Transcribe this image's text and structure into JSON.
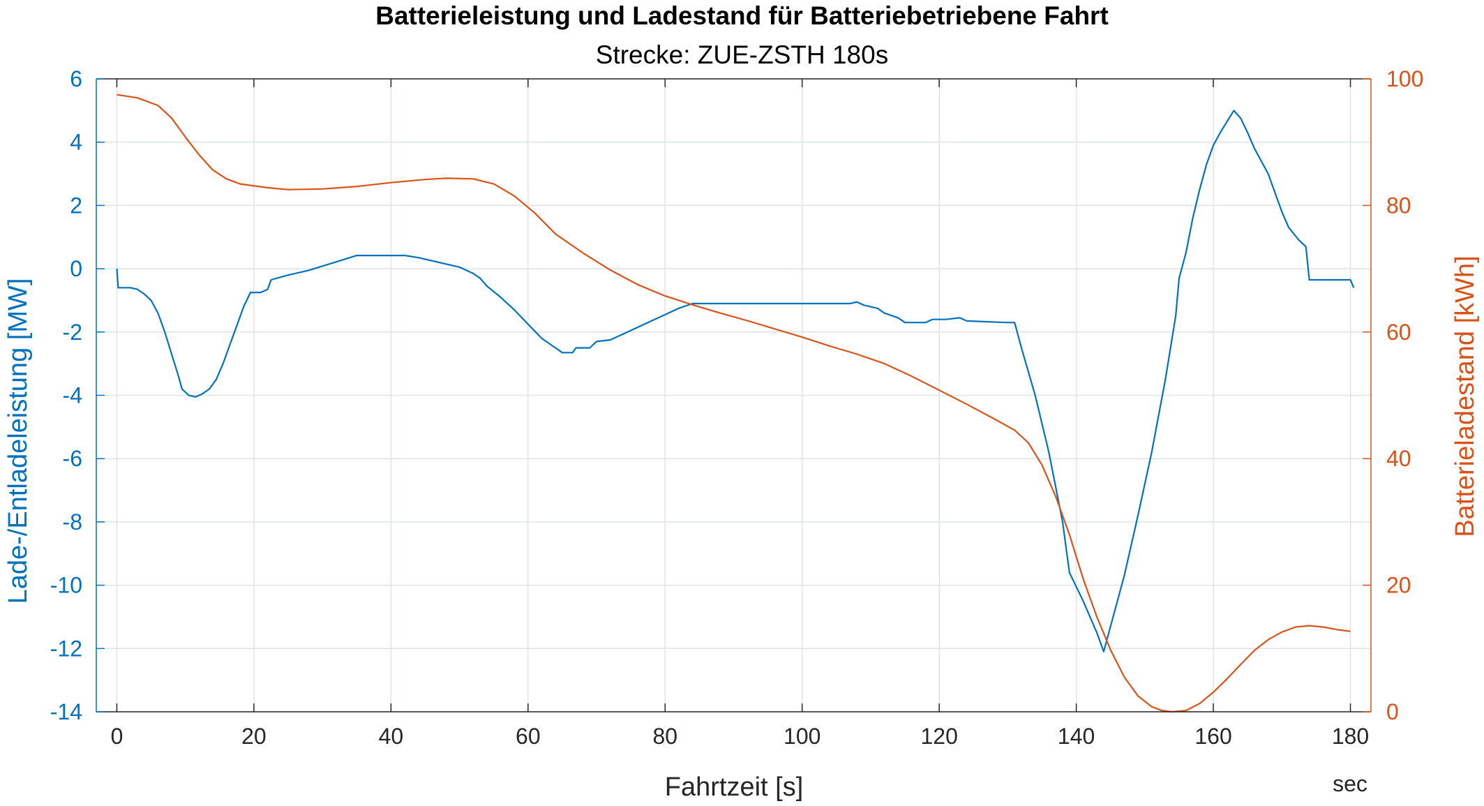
{
  "chart_data": {
    "type": "line",
    "title": "Batterieleistung und Ladestand für Batteriebetriebene Fahrt",
    "subtitle": "Strecke: ZUE-ZSTH 180s",
    "xlabel": "Fahrtzeit [s]",
    "x_unit_label": "sec",
    "ylabel_left": "Lade-/Entladeleistung [MW]",
    "ylabel_right": "Batterieladestand [kWh]",
    "xlim": [
      -3,
      183
    ],
    "ylim_left": [
      -14,
      6
    ],
    "ylim_right": [
      0,
      100
    ],
    "xticks": [
      0,
      20,
      40,
      60,
      80,
      100,
      120,
      140,
      160,
      180
    ],
    "yticks_left": [
      6,
      4,
      2,
      0,
      -2,
      -4,
      -6,
      -8,
      -10,
      -12,
      -14
    ],
    "yticks_right": [
      100,
      80,
      60,
      40,
      20,
      0
    ],
    "grid": true,
    "colors": {
      "left": "#0072BD",
      "right": "#D95319",
      "grid": "#dfe3e8",
      "axis": "#262626"
    },
    "series": [
      {
        "axis": "left",
        "points": [
          [
            0,
            0
          ],
          [
            0.2,
            -0.6
          ],
          [
            2,
            -0.6
          ],
          [
            3,
            -0.65
          ],
          [
            4,
            -0.8
          ],
          [
            5,
            -1.0
          ],
          [
            6,
            -1.4
          ],
          [
            7,
            -2.0
          ],
          [
            8,
            -2.7
          ],
          [
            9,
            -3.4
          ],
          [
            9.5,
            -3.8
          ],
          [
            10.5,
            -4.0
          ],
          [
            11.5,
            -4.05
          ],
          [
            12.5,
            -3.95
          ],
          [
            13.5,
            -3.8
          ],
          [
            14.5,
            -3.5
          ],
          [
            15.5,
            -3.0
          ],
          [
            16.5,
            -2.4
          ],
          [
            17.5,
            -1.8
          ],
          [
            18.5,
            -1.2
          ],
          [
            19.5,
            -0.75
          ],
          [
            21,
            -0.75
          ],
          [
            22,
            -0.65
          ],
          [
            22.5,
            -0.35
          ],
          [
            25,
            -0.2
          ],
          [
            28,
            -0.05
          ],
          [
            31,
            0.15
          ],
          [
            34,
            0.35
          ],
          [
            35,
            0.42
          ],
          [
            42,
            0.42
          ],
          [
            44,
            0.35
          ],
          [
            47,
            0.2
          ],
          [
            50,
            0.05
          ],
          [
            52,
            -0.15
          ],
          [
            53,
            -0.3
          ],
          [
            54,
            -0.55
          ],
          [
            56,
            -0.9
          ],
          [
            58,
            -1.3
          ],
          [
            60,
            -1.75
          ],
          [
            62,
            -2.2
          ],
          [
            64,
            -2.5
          ],
          [
            65,
            -2.65
          ],
          [
            66.5,
            -2.65
          ],
          [
            67,
            -2.5
          ],
          [
            69,
            -2.5
          ],
          [
            70,
            -2.3
          ],
          [
            72,
            -2.25
          ],
          [
            74,
            -2.05
          ],
          [
            76,
            -1.85
          ],
          [
            78,
            -1.65
          ],
          [
            80,
            -1.45
          ],
          [
            82,
            -1.25
          ],
          [
            84,
            -1.1
          ],
          [
            107,
            -1.1
          ],
          [
            108,
            -1.05
          ],
          [
            109,
            -1.15
          ],
          [
            111,
            -1.25
          ],
          [
            112,
            -1.4
          ],
          [
            114,
            -1.55
          ],
          [
            115,
            -1.7
          ],
          [
            118,
            -1.7
          ],
          [
            119,
            -1.6
          ],
          [
            121,
            -1.6
          ],
          [
            123,
            -1.55
          ],
          [
            124,
            -1.65
          ],
          [
            130,
            -1.7
          ],
          [
            131,
            -1.7
          ],
          [
            132,
            -2.5
          ],
          [
            134,
            -4.0
          ],
          [
            136,
            -5.8
          ],
          [
            138,
            -8.0
          ],
          [
            139,
            -9.6
          ],
          [
            141,
            -10.5
          ],
          [
            143,
            -11.5
          ],
          [
            144,
            -12.1
          ],
          [
            145,
            -11.3
          ],
          [
            147,
            -9.7
          ],
          [
            149,
            -7.8
          ],
          [
            151,
            -5.8
          ],
          [
            153,
            -3.5
          ],
          [
            154.5,
            -1.5
          ],
          [
            155,
            -0.3
          ],
          [
            156,
            0.5
          ],
          [
            157,
            1.6
          ],
          [
            158,
            2.5
          ],
          [
            159,
            3.3
          ],
          [
            160,
            3.9
          ],
          [
            161,
            4.3
          ],
          [
            162,
            4.65
          ],
          [
            163,
            5.0
          ],
          [
            164,
            4.75
          ],
          [
            165,
            4.3
          ],
          [
            166,
            3.8
          ],
          [
            168,
            3.0
          ],
          [
            169,
            2.4
          ],
          [
            170,
            1.8
          ],
          [
            171,
            1.3
          ],
          [
            172.5,
            0.9
          ],
          [
            173.5,
            0.7
          ],
          [
            174,
            -0.35
          ],
          [
            180,
            -0.35
          ],
          [
            180.5,
            -0.6
          ]
        ]
      },
      {
        "axis": "right",
        "points": [
          [
            0,
            97.5
          ],
          [
            3,
            97
          ],
          [
            6,
            95.8
          ],
          [
            8,
            93.8
          ],
          [
            10,
            90.8
          ],
          [
            12,
            88
          ],
          [
            14,
            85.6
          ],
          [
            16,
            84.2
          ],
          [
            18,
            83.4
          ],
          [
            22,
            82.8
          ],
          [
            25,
            82.5
          ],
          [
            30,
            82.6
          ],
          [
            35,
            83
          ],
          [
            40,
            83.6
          ],
          [
            45,
            84.1
          ],
          [
            48,
            84.3
          ],
          [
            52,
            84.2
          ],
          [
            55,
            83.4
          ],
          [
            58,
            81.5
          ],
          [
            61,
            78.8
          ],
          [
            64,
            75.5
          ],
          [
            68,
            72.5
          ],
          [
            72,
            69.8
          ],
          [
            76,
            67.5
          ],
          [
            80,
            65.7
          ],
          [
            84,
            64.3
          ],
          [
            88,
            63
          ],
          [
            92,
            61.8
          ],
          [
            96,
            60.5
          ],
          [
            100,
            59.2
          ],
          [
            104,
            57.8
          ],
          [
            108,
            56.5
          ],
          [
            112,
            55
          ],
          [
            116,
            53
          ],
          [
            120,
            50.8
          ],
          [
            124,
            48.6
          ],
          [
            128,
            46.3
          ],
          [
            131,
            44.5
          ],
          [
            133,
            42.5
          ],
          [
            135,
            39
          ],
          [
            137,
            34
          ],
          [
            139,
            28
          ],
          [
            141,
            21
          ],
          [
            143,
            15
          ],
          [
            145,
            9.8
          ],
          [
            147,
            5.5
          ],
          [
            149,
            2.5
          ],
          [
            151,
            0.8
          ],
          [
            152.5,
            0.2
          ],
          [
            154,
            0
          ],
          [
            156,
            0.2
          ],
          [
            158,
            1.3
          ],
          [
            160,
            3.1
          ],
          [
            162,
            5.2
          ],
          [
            164,
            7.5
          ],
          [
            166,
            9.7
          ],
          [
            168,
            11.4
          ],
          [
            170,
            12.6
          ],
          [
            172,
            13.4
          ],
          [
            174,
            13.6
          ],
          [
            176,
            13.4
          ],
          [
            178,
            13.0
          ],
          [
            180,
            12.7
          ]
        ]
      }
    ]
  }
}
